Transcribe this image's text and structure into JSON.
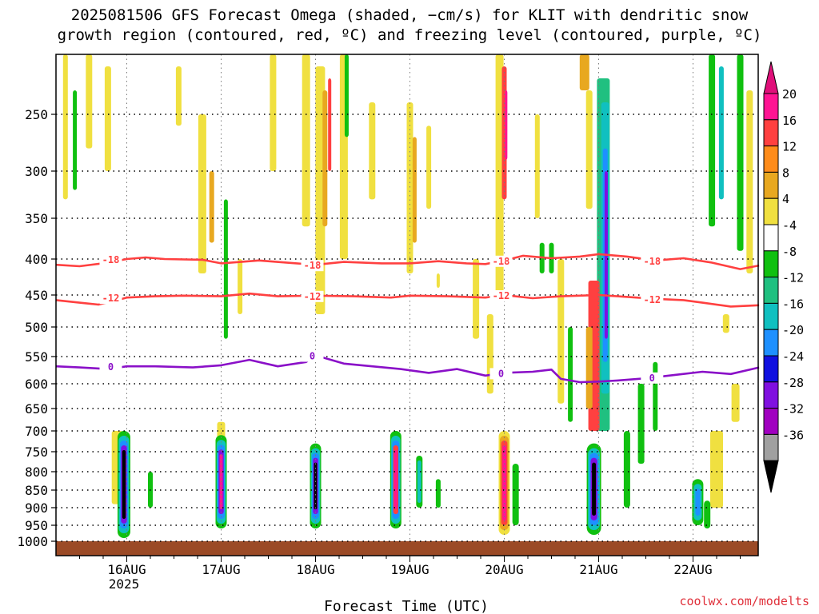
{
  "chart_data": {
    "type": "heatmap",
    "title": "2025081506 GFS Forecast Omega (shaded, −cm/s) for KLIT with dendritic snow",
    "subtitle": "growth region (contoured, red, ºC) and freezing level (contoured, purple, ºC)",
    "xlabel": "Forecast Time (UTC)",
    "credit": "coolwx.com/modelts",
    "y_axis": {
      "reversed": true,
      "ticks": [
        250,
        300,
        350,
        400,
        450,
        500,
        550,
        600,
        650,
        700,
        750,
        800,
        850,
        900,
        950,
        1000
      ],
      "labels": [
        "250",
        "300",
        "350",
        "400",
        "450",
        "500",
        "550",
        "600",
        "650",
        "700",
        "750",
        "800",
        "850",
        "900",
        "950",
        "1000"
      ],
      "range": [
        200,
        1010
      ]
    },
    "x_axis": {
      "tick_labels": [
        "16AUG",
        "17AUG",
        "18AUG",
        "19AUG",
        "20AUG",
        "21AUG",
        "22AUG"
      ],
      "year_label": "2025",
      "range_days": [
        15.25,
        22.7
      ]
    },
    "colorbar": {
      "labels": [
        "20",
        "16",
        "12",
        "8",
        "4",
        "-4",
        "-8",
        "-12",
        "-16",
        "-20",
        "-24",
        "-28",
        "-32",
        "-36"
      ],
      "colors": [
        "#ff1493",
        "#ff4040",
        "#ff8c1a",
        "#e8a820",
        "#f0e040",
        "#ffffff",
        "#10c010",
        "#20c080",
        "#10c0c0",
        "#1e90ff",
        "#1010e0",
        "#8010e0",
        "#a000c0",
        "#a0a0a0",
        "#000000"
      ],
      "top_arrow_color": "#e0107a",
      "bottom_arrow_color": "#000000"
    },
    "contours": [
      {
        "name": "-18",
        "color": "#ff4040",
        "label": "-18",
        "x": [
          15.25,
          15.5,
          15.8,
          16.0,
          16.2,
          16.4,
          16.8,
          17.0,
          17.4,
          17.8,
          18.0,
          18.3,
          18.7,
          19.0,
          19.3,
          19.6,
          19.8,
          20.0,
          20.2,
          20.5,
          20.8,
          21.0,
          21.3,
          21.6,
          21.9,
          22.2,
          22.5,
          22.7
        ],
        "y": [
          408,
          410,
          405,
          400,
          398,
          400,
          401,
          406,
          402,
          406,
          408,
          404,
          406,
          406,
          403,
          406,
          407,
          402,
          396,
          399,
          397,
          394,
          397,
          402,
          399,
          405,
          414,
          409
        ]
      },
      {
        "name": "-12",
        "color": "#ff4040",
        "label": "-12",
        "x": [
          15.25,
          15.5,
          15.7,
          15.9,
          16.0,
          16.3,
          16.6,
          17.0,
          17.3,
          17.6,
          18.0,
          18.4,
          18.8,
          19.0,
          19.4,
          19.8,
          20.0,
          20.3,
          20.6,
          20.8,
          21.0,
          21.2,
          21.6,
          21.9,
          22.1,
          22.4,
          22.7
        ],
        "y": [
          458,
          462,
          465,
          458,
          454,
          452,
          451,
          452,
          448,
          452,
          451,
          452,
          454,
          451,
          452,
          454,
          450,
          455,
          452,
          451,
          450,
          452,
          456,
          458,
          462,
          468,
          466
        ]
      },
      {
        "name": "0",
        "color": "#8a10c8",
        "label": "0",
        "x": [
          15.25,
          15.5,
          15.8,
          16.0,
          16.3,
          16.7,
          17.0,
          17.3,
          17.6,
          17.9,
          18.0,
          18.3,
          18.6,
          18.9,
          19.2,
          19.5,
          19.8,
          20.0,
          20.3,
          20.5,
          20.6,
          20.8,
          21.0,
          21.2,
          21.5,
          21.8,
          22.1,
          22.4,
          22.7
        ],
        "y": [
          568,
          570,
          573,
          568,
          568,
          570,
          566,
          556,
          568,
          560,
          548,
          563,
          568,
          573,
          580,
          573,
          585,
          580,
          578,
          574,
          591,
          597,
          596,
          594,
          590,
          584,
          578,
          582,
          570
        ]
      }
    ]
  }
}
